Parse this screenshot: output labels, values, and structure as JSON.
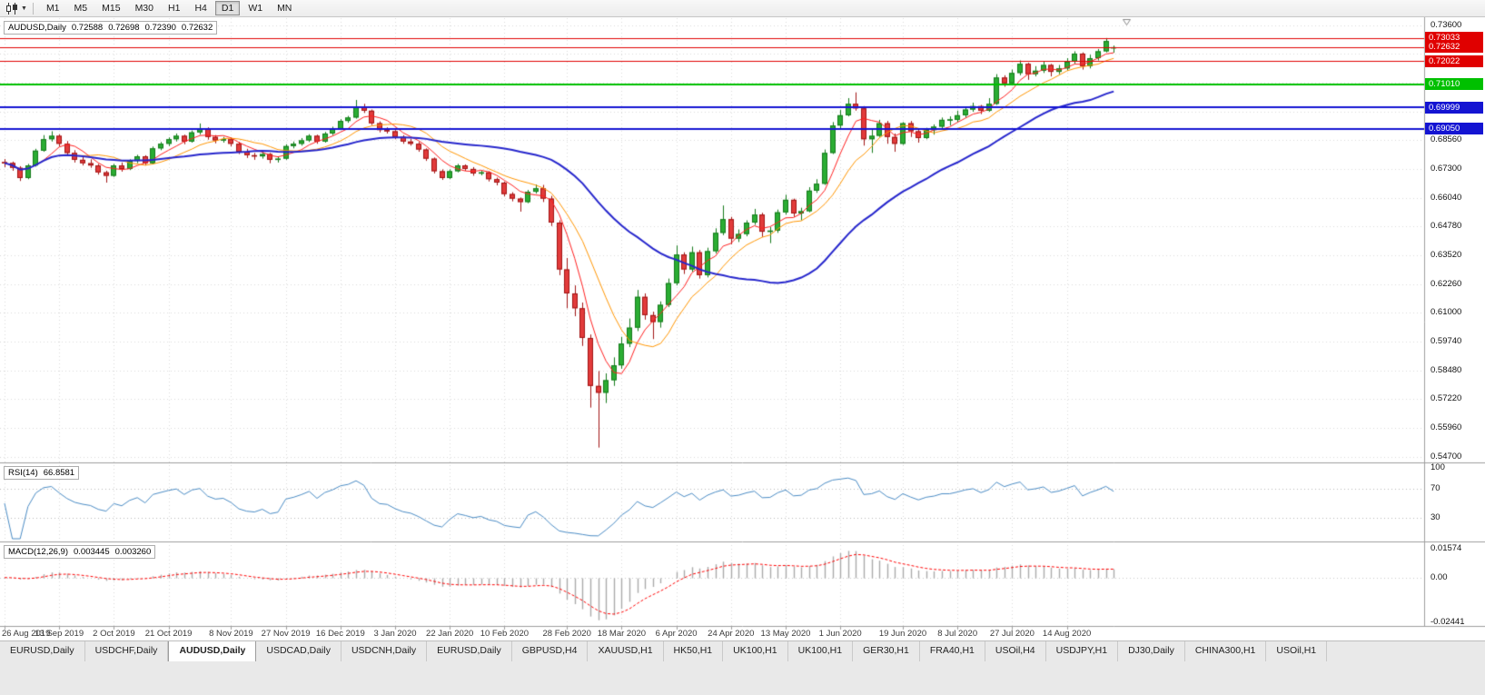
{
  "toolbar": {
    "timeframes": [
      "M1",
      "M5",
      "M15",
      "M30",
      "H1",
      "H4",
      "D1",
      "W1",
      "MN"
    ],
    "active_timeframe": "D1",
    "chart_type_icon": "candlestick-chart",
    "dropdown_icon": "chevron-down"
  },
  "chart_header": {
    "symbol_period": "AUDUSD,Daily",
    "open": "0.72588",
    "high": "0.72698",
    "low": "0.72390",
    "close": "0.72632"
  },
  "price_axis": {
    "tick_labels": [
      {
        "text": "0.73600",
        "value": 0.736
      },
      {
        "text": "0.68560",
        "value": 0.6856
      },
      {
        "text": "0.67300",
        "value": 0.673
      },
      {
        "text": "0.66040",
        "value": 0.6604
      },
      {
        "text": "0.64780",
        "value": 0.6478
      },
      {
        "text": "0.63520",
        "value": 0.6352
      },
      {
        "text": "0.62260",
        "value": 0.6226
      },
      {
        "text": "0.61000",
        "value": 0.61
      },
      {
        "text": "0.59740",
        "value": 0.5974
      },
      {
        "text": "0.58480",
        "value": 0.5848
      },
      {
        "text": "0.57220",
        "value": 0.5722
      },
      {
        "text": "0.55960",
        "value": 0.5596
      },
      {
        "text": "0.54700",
        "value": 0.547
      }
    ],
    "badges": [
      {
        "text": "0.73033",
        "value": 0.73033,
        "color": "#e00000",
        "line_width": 1
      },
      {
        "text": "0.72632",
        "value": 0.72632,
        "color": "#e00000",
        "line_width": 1
      },
      {
        "text": "0.72022",
        "value": 0.72022,
        "color": "#e00000",
        "line_width": 1
      },
      {
        "text": "0.71010",
        "value": 0.7101,
        "color": "#00c000",
        "line_width": 2
      },
      {
        "text": "0.69999",
        "value": 0.69999,
        "color": "#1414d2",
        "line_width": 2
      },
      {
        "text": "0.69050",
        "value": 0.6905,
        "color": "#1414d2",
        "line_width": 2
      }
    ]
  },
  "chart_data": {
    "type": "candlestick",
    "symbol": "AUDUSD",
    "timeframe": "Daily",
    "title": "AUDUSD,Daily 0.72588 0.72698 0.72390 0.72632",
    "ylim": [
      0.5445,
      0.739
    ],
    "price_gridlines": [
      0.736,
      0.7234,
      0.7108,
      0.6982,
      0.6856,
      0.673,
      0.6604,
      0.6478,
      0.6352,
      0.6226,
      0.61,
      0.5974,
      0.5848,
      0.5722,
      0.5596,
      0.547
    ],
    "x_labels": [
      "26 Aug 2019",
      "13 Sep 2019",
      "2 Oct 2019",
      "21 Oct 2019",
      "8 Nov 2019",
      "27 Nov 2019",
      "16 Dec 2019",
      "3 Jan 2020",
      "22 Jan 2020",
      "10 Feb 2020",
      "28 Feb 2020",
      "18 Mar 2020",
      "6 Apr 2020",
      "24 Apr 2020",
      "13 May 2020",
      "1 Jun 2020",
      "19 Jun 2020",
      "8 Jul 2020",
      "27 Jul 2020",
      "14 Aug 2020"
    ],
    "grid_color": "#dadada",
    "separator_color": "#9e9e9e",
    "candle_colors": {
      "bull": "#2bad33",
      "bull_edge": "#157a1b",
      "bear": "#e23b3b",
      "bear_edge": "#a01414"
    },
    "overlays": [
      {
        "name": "ma-fast",
        "period": 5,
        "color": "#ff1f1f",
        "width": 1
      },
      {
        "name": "ma-mid",
        "period": 10,
        "color": "#ff9500",
        "width": 1
      },
      {
        "name": "ma-slow",
        "period": 30,
        "color": "#2626cc",
        "width": 2
      }
    ],
    "indicators": [
      {
        "type": "rsi",
        "label": "RSI(14)",
        "value": "66.8581",
        "color": "#4a8bc4",
        "levels": [
          70,
          30
        ],
        "ticks": [
          {
            "text": "100",
            "value": 100
          },
          {
            "text": "70",
            "value": 70
          },
          {
            "text": "30",
            "value": 30
          }
        ]
      },
      {
        "type": "macd",
        "label": "MACD(12,26,9)",
        "value_main": "0.003445",
        "value_signal": "0.003260",
        "histogram_color": "#ababab",
        "signal_color": "#ff0000",
        "ylim": [
          -0.02441,
          0.01574
        ],
        "ticks": [
          {
            "text": "0.01574",
            "value": 0.01574
          },
          {
            "text": "0.00",
            "value": 0
          },
          {
            "text": "-0.02441",
            "value": -0.02441
          }
        ]
      }
    ],
    "ohlc": [
      [
        0.676,
        0.6773,
        0.6738,
        0.6756
      ],
      [
        0.6756,
        0.6762,
        0.6722,
        0.6735
      ],
      [
        0.6735,
        0.6742,
        0.6677,
        0.669
      ],
      [
        0.669,
        0.6752,
        0.6685,
        0.6745
      ],
      [
        0.6745,
        0.6818,
        0.674,
        0.681
      ],
      [
        0.681,
        0.6878,
        0.6805,
        0.686
      ],
      [
        0.686,
        0.6895,
        0.685,
        0.6875
      ],
      [
        0.6875,
        0.6882,
        0.6828,
        0.684
      ],
      [
        0.684,
        0.6852,
        0.679,
        0.68
      ],
      [
        0.68,
        0.6812,
        0.6758,
        0.677
      ],
      [
        0.677,
        0.6784,
        0.6745,
        0.6755
      ],
      [
        0.6755,
        0.6772,
        0.6735,
        0.6745
      ],
      [
        0.6745,
        0.6752,
        0.6705,
        0.6715
      ],
      [
        0.6715,
        0.6722,
        0.667,
        0.67
      ],
      [
        0.67,
        0.6752,
        0.6695,
        0.6745
      ],
      [
        0.6745,
        0.6758,
        0.6718,
        0.673
      ],
      [
        0.673,
        0.6772,
        0.6725,
        0.6765
      ],
      [
        0.6765,
        0.6792,
        0.6755,
        0.6785
      ],
      [
        0.6785,
        0.679,
        0.6745,
        0.6755
      ],
      [
        0.6755,
        0.6828,
        0.675,
        0.682
      ],
      [
        0.682,
        0.6848,
        0.6812,
        0.684
      ],
      [
        0.684,
        0.6868,
        0.683,
        0.686
      ],
      [
        0.686,
        0.6885,
        0.685,
        0.6875
      ],
      [
        0.6875,
        0.688,
        0.6838,
        0.685
      ],
      [
        0.685,
        0.6898,
        0.6845,
        0.689
      ],
      [
        0.689,
        0.6929,
        0.688,
        0.6905
      ],
      [
        0.6905,
        0.6912,
        0.6858,
        0.687
      ],
      [
        0.687,
        0.6878,
        0.6842,
        0.6855
      ],
      [
        0.6855,
        0.687,
        0.6845,
        0.686
      ],
      [
        0.686,
        0.6868,
        0.6828,
        0.684
      ],
      [
        0.684,
        0.6848,
        0.6795,
        0.6805
      ],
      [
        0.6805,
        0.6818,
        0.6778,
        0.679
      ],
      [
        0.679,
        0.68,
        0.677,
        0.6785
      ],
      [
        0.6785,
        0.6805,
        0.6775,
        0.6795
      ],
      [
        0.6795,
        0.68,
        0.6755,
        0.677
      ],
      [
        0.677,
        0.6785,
        0.6758,
        0.6775
      ],
      [
        0.6775,
        0.6838,
        0.677,
        0.683
      ],
      [
        0.683,
        0.685,
        0.682,
        0.684
      ],
      [
        0.684,
        0.6865,
        0.6832,
        0.6855
      ],
      [
        0.6855,
        0.6882,
        0.6848,
        0.6875
      ],
      [
        0.6875,
        0.688,
        0.684,
        0.685
      ],
      [
        0.685,
        0.6892,
        0.6845,
        0.6885
      ],
      [
        0.6885,
        0.6915,
        0.6878,
        0.6905
      ],
      [
        0.6905,
        0.6948,
        0.69,
        0.694
      ],
      [
        0.694,
        0.6962,
        0.6932,
        0.6955
      ],
      [
        0.6955,
        0.7032,
        0.695,
        0.7
      ],
      [
        0.7,
        0.7015,
        0.6975,
        0.6985
      ],
      [
        0.6985,
        0.699,
        0.6922,
        0.693
      ],
      [
        0.693,
        0.6938,
        0.689,
        0.69
      ],
      [
        0.69,
        0.6912,
        0.6885,
        0.6895
      ],
      [
        0.6895,
        0.69,
        0.686,
        0.687
      ],
      [
        0.687,
        0.6878,
        0.684,
        0.685
      ],
      [
        0.685,
        0.6862,
        0.6832,
        0.684
      ],
      [
        0.684,
        0.6848,
        0.6805,
        0.6815
      ],
      [
        0.6815,
        0.682,
        0.6765,
        0.6775
      ],
      [
        0.6775,
        0.678,
        0.671,
        0.672
      ],
      [
        0.672,
        0.6728,
        0.6682,
        0.669
      ],
      [
        0.669,
        0.6728,
        0.6685,
        0.672
      ],
      [
        0.672,
        0.6752,
        0.6715,
        0.6745
      ],
      [
        0.6745,
        0.675,
        0.6722,
        0.673
      ],
      [
        0.673,
        0.6738,
        0.67,
        0.671
      ],
      [
        0.671,
        0.6722,
        0.6702,
        0.6715
      ],
      [
        0.6715,
        0.672,
        0.6675,
        0.6685
      ],
      [
        0.6685,
        0.6692,
        0.6658,
        0.667
      ],
      [
        0.667,
        0.6675,
        0.661,
        0.662
      ],
      [
        0.662,
        0.6628,
        0.6588,
        0.66
      ],
      [
        0.66,
        0.6605,
        0.6543,
        0.6585
      ],
      [
        0.6585,
        0.6638,
        0.658,
        0.663
      ],
      [
        0.663,
        0.6662,
        0.6622,
        0.6645
      ],
      [
        0.6645,
        0.666,
        0.6585,
        0.66
      ],
      [
        0.66,
        0.6612,
        0.648,
        0.6495
      ],
      [
        0.6495,
        0.6505,
        0.6265,
        0.629
      ],
      [
        0.629,
        0.634,
        0.612,
        0.6185
      ],
      [
        0.6185,
        0.622,
        0.6085,
        0.612
      ],
      [
        0.612,
        0.6145,
        0.5955,
        0.599
      ],
      [
        0.599,
        0.6005,
        0.5685,
        0.578
      ],
      [
        0.578,
        0.5845,
        0.551,
        0.575
      ],
      [
        0.575,
        0.5835,
        0.5705,
        0.5805
      ],
      [
        0.5805,
        0.5905,
        0.578,
        0.587
      ],
      [
        0.587,
        0.5995,
        0.5855,
        0.5965
      ],
      [
        0.5965,
        0.6075,
        0.595,
        0.6035
      ],
      [
        0.6035,
        0.62,
        0.602,
        0.617
      ],
      [
        0.617,
        0.6185,
        0.607,
        0.609
      ],
      [
        0.609,
        0.6105,
        0.5985,
        0.606
      ],
      [
        0.606,
        0.615,
        0.6035,
        0.6135
      ],
      [
        0.6135,
        0.625,
        0.6125,
        0.623
      ],
      [
        0.623,
        0.6395,
        0.622,
        0.6355
      ],
      [
        0.6355,
        0.6365,
        0.627,
        0.629
      ],
      [
        0.629,
        0.639,
        0.628,
        0.6365
      ],
      [
        0.6365,
        0.6375,
        0.625,
        0.6265
      ],
      [
        0.6265,
        0.6385,
        0.6255,
        0.637
      ],
      [
        0.637,
        0.647,
        0.636,
        0.645
      ],
      [
        0.645,
        0.657,
        0.644,
        0.651
      ],
      [
        0.651,
        0.652,
        0.64,
        0.6425
      ],
      [
        0.6425,
        0.6465,
        0.641,
        0.6445
      ],
      [
        0.6445,
        0.6505,
        0.6435,
        0.6495
      ],
      [
        0.6495,
        0.6555,
        0.6485,
        0.653
      ],
      [
        0.653,
        0.6538,
        0.6432,
        0.6455
      ],
      [
        0.6455,
        0.6475,
        0.6405,
        0.646
      ],
      [
        0.646,
        0.6552,
        0.645,
        0.654
      ],
      [
        0.654,
        0.6617,
        0.653,
        0.6595
      ],
      [
        0.6595,
        0.66,
        0.652,
        0.6535
      ],
      [
        0.6535,
        0.656,
        0.6505,
        0.6545
      ],
      [
        0.6545,
        0.665,
        0.654,
        0.6635
      ],
      [
        0.6635,
        0.6685,
        0.6625,
        0.6665
      ],
      [
        0.6665,
        0.6815,
        0.666,
        0.68
      ],
      [
        0.68,
        0.6935,
        0.6795,
        0.692
      ],
      [
        0.692,
        0.6988,
        0.6905,
        0.6965
      ],
      [
        0.6965,
        0.704,
        0.696,
        0.7015
      ],
      [
        0.7015,
        0.7065,
        0.6985,
        0.6995
      ],
      [
        0.6995,
        0.7005,
        0.6832,
        0.686
      ],
      [
        0.686,
        0.6905,
        0.68,
        0.6875
      ],
      [
        0.6875,
        0.6945,
        0.687,
        0.693
      ],
      [
        0.693,
        0.694,
        0.684,
        0.687
      ],
      [
        0.687,
        0.6885,
        0.6805,
        0.684
      ],
      [
        0.684,
        0.6935,
        0.6835,
        0.693
      ],
      [
        0.693,
        0.694,
        0.687,
        0.6895
      ],
      [
        0.6895,
        0.6905,
        0.6845,
        0.6865
      ],
      [
        0.6865,
        0.691,
        0.686,
        0.69
      ],
      [
        0.69,
        0.6925,
        0.688,
        0.6915
      ],
      [
        0.6915,
        0.6955,
        0.6905,
        0.6945
      ],
      [
        0.6945,
        0.696,
        0.692,
        0.6945
      ],
      [
        0.6945,
        0.6985,
        0.6935,
        0.6965
      ],
      [
        0.6965,
        0.7,
        0.6955,
        0.699
      ],
      [
        0.699,
        0.702,
        0.698,
        0.7005
      ],
      [
        0.7005,
        0.701,
        0.697,
        0.6985
      ],
      [
        0.6985,
        0.704,
        0.698,
        0.7015
      ],
      [
        0.7015,
        0.7145,
        0.701,
        0.713
      ],
      [
        0.713,
        0.714,
        0.709,
        0.7105
      ],
      [
        0.7105,
        0.7165,
        0.7095,
        0.715
      ],
      [
        0.715,
        0.7205,
        0.714,
        0.719
      ],
      [
        0.719,
        0.7195,
        0.712,
        0.7145
      ],
      [
        0.7145,
        0.718,
        0.7135,
        0.716
      ],
      [
        0.716,
        0.72,
        0.715,
        0.7185
      ],
      [
        0.7185,
        0.719,
        0.7135,
        0.7155
      ],
      [
        0.7155,
        0.7185,
        0.7145,
        0.717
      ],
      [
        0.717,
        0.7215,
        0.716,
        0.72
      ],
      [
        0.72,
        0.7245,
        0.719,
        0.7235
      ],
      [
        0.7235,
        0.724,
        0.7165,
        0.718
      ],
      [
        0.718,
        0.723,
        0.717,
        0.7215
      ],
      [
        0.7215,
        0.7255,
        0.7205,
        0.7245
      ],
      [
        0.7245,
        0.7303,
        0.724,
        0.729
      ],
      [
        0.7259,
        0.727,
        0.7239,
        0.7263
      ]
    ]
  },
  "tabs": {
    "items": [
      {
        "label": "EURUSD,Daily",
        "active": false
      },
      {
        "label": "USDCHF,Daily",
        "active": false
      },
      {
        "label": "AUDUSD,Daily",
        "active": true
      },
      {
        "label": "USDCAD,Daily",
        "active": false
      },
      {
        "label": "USDCNH,Daily",
        "active": false
      },
      {
        "label": "EURUSD,Daily",
        "active": false
      },
      {
        "label": "GBPUSD,H4",
        "active": false
      },
      {
        "label": "XAUUSD,H1",
        "active": false
      },
      {
        "label": "HK50,H1",
        "active": false
      },
      {
        "label": "UK100,H1",
        "active": false
      },
      {
        "label": "UK100,H1",
        "active": false
      },
      {
        "label": "GER30,H1",
        "active": false
      },
      {
        "label": "FRA40,H1",
        "active": false
      },
      {
        "label": "USOil,H4",
        "active": false
      },
      {
        "label": "USDJPY,H1",
        "active": false
      },
      {
        "label": "DJ30,Daily",
        "active": false
      },
      {
        "label": "CHINA300,H1",
        "active": false
      },
      {
        "label": "USOil,H1",
        "active": false
      }
    ]
  }
}
